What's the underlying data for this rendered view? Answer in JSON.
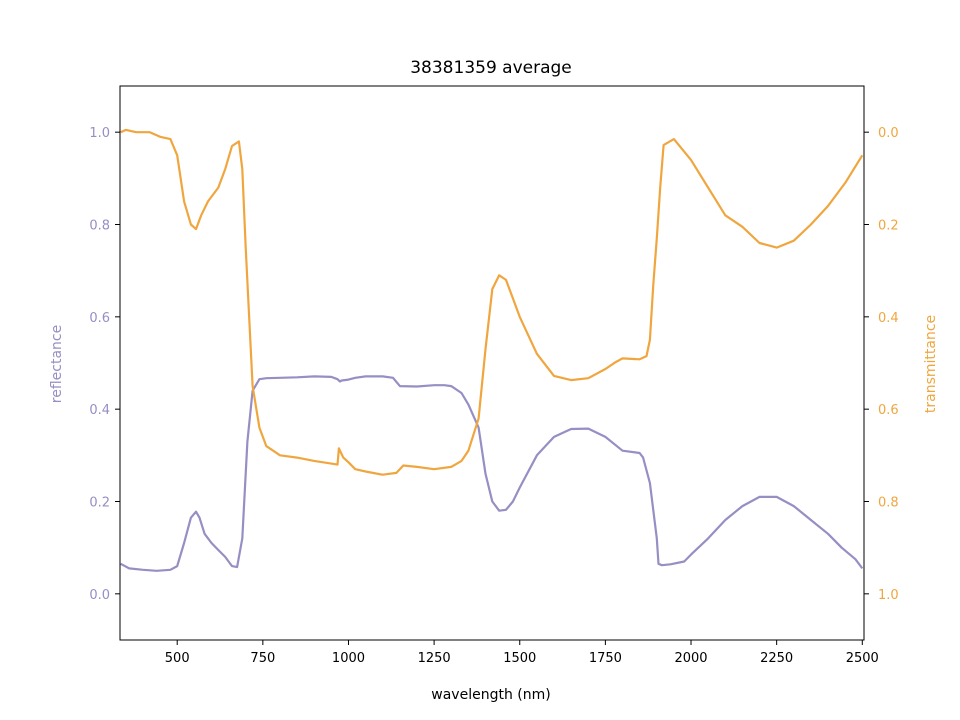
{
  "colors": {
    "reflectance": "#958fc4",
    "transmittance": "#f0a63f",
    "axis": "#000000",
    "background": "#ffffff"
  },
  "chart_data": {
    "type": "line",
    "title": "38381359 average",
    "xlabel": "wavelength (nm)",
    "ylabel": "reflectance",
    "ylabel_right": "transmittance",
    "xlim": [
      333,
      2505
    ],
    "ylim": [
      -0.1,
      1.1
    ],
    "ylim_right_inverted": [
      1.1,
      -0.1
    ],
    "x_ticks": [
      500,
      750,
      1000,
      1250,
      1500,
      1750,
      2000,
      2250,
      2500
    ],
    "x_tick_labels": [
      "500",
      "750",
      "1000",
      "1250",
      "1500",
      "1750",
      "2000",
      "2250",
      "2500"
    ],
    "y_ticks": [
      0.0,
      0.2,
      0.4,
      0.6,
      0.8,
      1.0
    ],
    "y_tick_labels": [
      "0.0",
      "0.2",
      "0.4",
      "0.6",
      "0.8",
      "1.0"
    ],
    "y_right_ticks": [
      0.0,
      0.2,
      0.4,
      0.6,
      0.8,
      1.0
    ],
    "y_right_tick_labels": [
      "0.0",
      "0.2",
      "0.4",
      "0.6",
      "0.8",
      "1.0"
    ],
    "series": [
      {
        "name": "reflectance",
        "axis": "left",
        "x": [
          335,
          360,
          400,
          440,
          480,
          500,
          520,
          540,
          555,
          565,
          580,
          600,
          620,
          640,
          660,
          675,
          690,
          705,
          720,
          740,
          760,
          800,
          850,
          900,
          950,
          968,
          975,
          980,
          1000,
          1020,
          1050,
          1100,
          1130,
          1150,
          1200,
          1250,
          1280,
          1300,
          1330,
          1350,
          1380,
          1400,
          1420,
          1440,
          1460,
          1480,
          1500,
          1550,
          1600,
          1650,
          1700,
          1750,
          1800,
          1850,
          1860,
          1880,
          1900,
          1905,
          1915,
          1940,
          1980,
          2000,
          2050,
          2100,
          2150,
          2200,
          2250,
          2300,
          2350,
          2400,
          2440,
          2480,
          2500
        ],
        "y": [
          0.065,
          0.055,
          0.052,
          0.05,
          0.052,
          0.06,
          0.11,
          0.165,
          0.178,
          0.165,
          0.13,
          0.11,
          0.095,
          0.08,
          0.06,
          0.058,
          0.12,
          0.33,
          0.44,
          0.465,
          0.467,
          0.468,
          0.469,
          0.471,
          0.47,
          0.465,
          0.46,
          0.462,
          0.464,
          0.468,
          0.471,
          0.471,
          0.468,
          0.45,
          0.449,
          0.452,
          0.452,
          0.45,
          0.435,
          0.41,
          0.36,
          0.26,
          0.2,
          0.18,
          0.182,
          0.2,
          0.23,
          0.3,
          0.34,
          0.357,
          0.358,
          0.34,
          0.31,
          0.305,
          0.295,
          0.24,
          0.12,
          0.065,
          0.062,
          0.064,
          0.07,
          0.085,
          0.12,
          0.16,
          0.19,
          0.21,
          0.21,
          0.19,
          0.16,
          0.13,
          0.1,
          0.075,
          0.055
        ]
      },
      {
        "name": "transmittance",
        "axis": "right",
        "x": [
          335,
          350,
          380,
          420,
          450,
          480,
          500,
          520,
          540,
          555,
          570,
          590,
          620,
          640,
          660,
          680,
          690,
          700,
          720,
          740,
          760,
          800,
          850,
          900,
          950,
          968,
          972,
          985,
          1000,
          1020,
          1050,
          1100,
          1140,
          1160,
          1200,
          1250,
          1300,
          1330,
          1350,
          1380,
          1400,
          1420,
          1440,
          1460,
          1480,
          1500,
          1550,
          1600,
          1650,
          1700,
          1750,
          1780,
          1800,
          1850,
          1870,
          1880,
          1890,
          1900,
          1910,
          1920,
          1950,
          2000,
          2050,
          2100,
          2150,
          2200,
          2250,
          2300,
          2350,
          2400,
          2450,
          2500
        ],
        "y": [
          0.0,
          -0.005,
          0.0,
          0.0,
          0.01,
          0.015,
          0.05,
          0.15,
          0.2,
          0.21,
          0.18,
          0.15,
          0.12,
          0.08,
          0.03,
          0.02,
          0.08,
          0.25,
          0.55,
          0.64,
          0.68,
          0.7,
          0.705,
          0.712,
          0.718,
          0.72,
          0.685,
          0.705,
          0.715,
          0.73,
          0.735,
          0.742,
          0.738,
          0.722,
          0.725,
          0.73,
          0.725,
          0.712,
          0.69,
          0.62,
          0.47,
          0.34,
          0.31,
          0.32,
          0.36,
          0.4,
          0.48,
          0.528,
          0.537,
          0.533,
          0.513,
          0.498,
          0.49,
          0.492,
          0.485,
          0.45,
          0.33,
          0.23,
          0.12,
          0.028,
          0.015,
          0.06,
          0.12,
          0.18,
          0.205,
          0.24,
          0.25,
          0.235,
          0.2,
          0.16,
          0.11,
          0.05
        ]
      }
    ]
  }
}
